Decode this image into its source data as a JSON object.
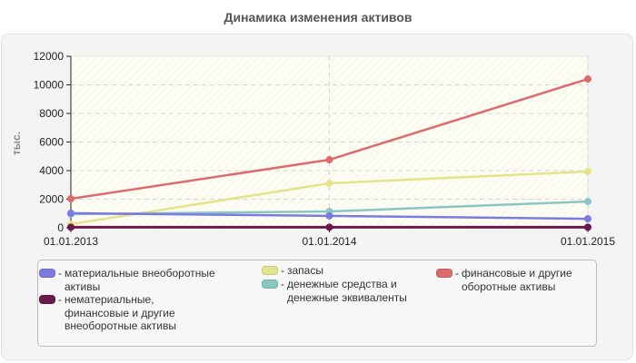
{
  "title": "Динамика изменения активов",
  "chart_data": {
    "type": "line",
    "title": "Динамика изменения активов",
    "xlabel": "",
    "ylabel": "тыс.",
    "categories": [
      "01.01.2013",
      "01.01.2014",
      "01.01.2015"
    ],
    "ylim": [
      0,
      12000
    ],
    "yticks": [
      0,
      2000,
      4000,
      6000,
      8000,
      10000,
      12000
    ],
    "grid": true,
    "legend_position": "bottom",
    "series": [
      {
        "name": "материальные внеоборотные активы",
        "color": "#7b7be0",
        "values": [
          1020,
          830,
          630
        ]
      },
      {
        "name": "нематериальные, финансовые и другие внеоборотные активы",
        "color": "#6b1a4e",
        "values": [
          40,
          40,
          40
        ]
      },
      {
        "name": "запасы",
        "color": "#e5e48a",
        "values": [
          250,
          3110,
          3940
        ]
      },
      {
        "name": "денежные средства и денежные эквиваленты",
        "color": "#8ac7c3",
        "values": [
          950,
          1140,
          1840
        ]
      },
      {
        "name": "финансовые и другие оборотные активы",
        "color": "#dd6b6b",
        "values": [
          2030,
          4760,
          10410
        ]
      }
    ]
  },
  "legend": {
    "dash": "-",
    "items": [
      {
        "label": "материальные внеоборотные активы",
        "color": "#7b7be0"
      },
      {
        "label": "нематериальные, финансовые и другие внеоборотные активы",
        "color": "#6b1a4e"
      },
      {
        "label": "запасы",
        "color": "#e5e48a"
      },
      {
        "label": "денежные средства и денежные эквиваленты",
        "color": "#8ac7c3"
      },
      {
        "label": "финансовые и другие оборотные активы",
        "color": "#dd6b6b"
      }
    ]
  }
}
